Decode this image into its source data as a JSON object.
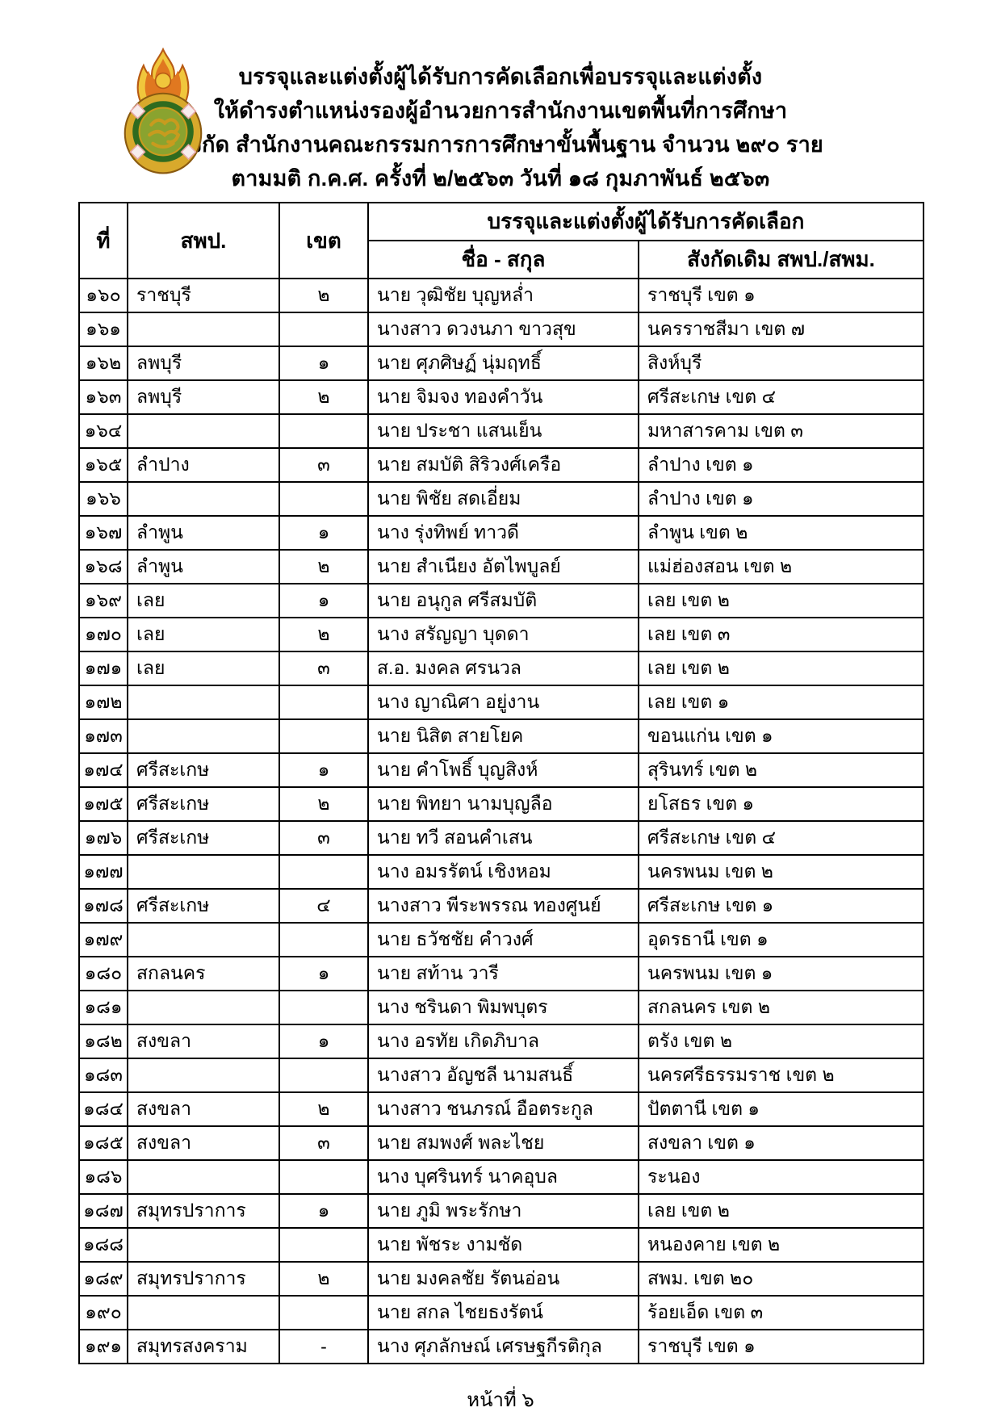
{
  "document": {
    "title_lines": [
      "บรรจุและแต่งตั้งผู้ได้รับการคัดเลือกเพื่อบรรจุและแต่งตั้ง",
      "ให้ดำรงตำแหน่งรองผู้อำนวยการสำนักงานเขตพื้นที่การศึกษา",
      "สังกัด สำนักงานคณะกรรมการการศึกษาขั้นพื้นฐาน จำนวน ๒๙๐ ราย",
      "ตามมติ ก.ค.ศ. ครั้งที่ ๒/๒๕๖๓ วันที่ ๑๘ กุมภาพันธ์ ๒๕๖๓"
    ]
  },
  "logo": {
    "name": "obec-ministry-of-education-seal",
    "colors": {
      "flame_outline": "#b85a14",
      "flame_fill": "#e07820",
      "flame_gold": "#f0c63c",
      "base_gold": "#d8a92c",
      "ring_dark_green": "#2f6b1f",
      "medallion_green": "#8aa32f",
      "script_gold": "#c89b1e",
      "accent_white": "#f7eded",
      "accent_pink": "#e8a9a9"
    }
  },
  "table": {
    "header": {
      "no": "ที่",
      "office": "สพป.",
      "zone": "เขต",
      "appointment_group": "บรรจุและแต่งตั้งผู้ได้รับการคัดเลือก",
      "name": "ชื่อ - สกุล",
      "former_affiliation": "สังกัดเดิม สพป./สพม."
    },
    "rows": [
      {
        "no": "๑๖๐",
        "office": "ราชบุรี",
        "zone": "๒",
        "name": "นาย วุฒิชัย บุญหล่ำ",
        "former": "ราชบุรี เขต ๑"
      },
      {
        "no": "๑๖๑",
        "office": "",
        "zone": "",
        "name": "นางสาว ดวงนภา ขาวสุข",
        "former": "นครราชสีมา เขต ๗"
      },
      {
        "no": "๑๖๒",
        "office": "ลพบุรี",
        "zone": "๑",
        "name": "นาย ศุภศิษฏ์ นุ่มฤทธิ์",
        "former": "สิงห์บุรี"
      },
      {
        "no": "๑๖๓",
        "office": "ลพบุรี",
        "zone": "๒",
        "name": "นาย จิมจง ทองคำวัน",
        "former": "ศรีสะเกษ เขต ๔"
      },
      {
        "no": "๑๖๔",
        "office": "",
        "zone": "",
        "name": "นาย ประชา แสนเย็น",
        "former": "มหาสารคาม เขต ๓"
      },
      {
        "no": "๑๖๕",
        "office": "ลำปาง",
        "zone": "๓",
        "name": "นาย สมบัติ สิริวงศ์เครือ",
        "former": "ลำปาง เขต ๑"
      },
      {
        "no": "๑๖๖",
        "office": "",
        "zone": "",
        "name": "นาย พิชัย สดเอี่ยม",
        "former": "ลำปาง เขต ๑"
      },
      {
        "no": "๑๖๗",
        "office": "ลำพูน",
        "zone": "๑",
        "name": "นาง รุ่งทิพย์ ทาวดี",
        "former": "ลำพูน เขต ๒"
      },
      {
        "no": "๑๖๘",
        "office": "ลำพูน",
        "zone": "๒",
        "name": "นาย สำเนียง อัตไพบูลย์",
        "former": "แม่ฮ่องสอน เขต ๒"
      },
      {
        "no": "๑๖๙",
        "office": "เลย",
        "zone": "๑",
        "name": "นาย อนุกูล ศรีสมบัติ",
        "former": "เลย เขต ๒"
      },
      {
        "no": "๑๗๐",
        "office": "เลย",
        "zone": "๒",
        "name": "นาง สรัญญา บุดดา",
        "former": "เลย เขต ๓"
      },
      {
        "no": "๑๗๑",
        "office": "เลย",
        "zone": "๓",
        "name": "ส.อ. มงคล ศรนวล",
        "former": "เลย เขต ๒"
      },
      {
        "no": "๑๗๒",
        "office": "",
        "zone": "",
        "name": "นาง ญาณิศา อยู่งาน",
        "former": "เลย เขต ๑"
      },
      {
        "no": "๑๗๓",
        "office": "",
        "zone": "",
        "name": "นาย นิสิต สายโยค",
        "former": "ขอนแก่น เขต ๑"
      },
      {
        "no": "๑๗๔",
        "office": "ศรีสะเกษ",
        "zone": "๑",
        "name": "นาย คำโพธิ์ บุญสิงห์",
        "former": "สุรินทร์ เขต ๒"
      },
      {
        "no": "๑๗๕",
        "office": "ศรีสะเกษ",
        "zone": "๒",
        "name": "นาย พิทยา นามบุญลือ",
        "former": "ยโสธร เขต ๑"
      },
      {
        "no": "๑๗๖",
        "office": "ศรีสะเกษ",
        "zone": "๓",
        "name": "นาย ทวี สอนคำเสน",
        "former": "ศรีสะเกษ เขต ๔"
      },
      {
        "no": "๑๗๗",
        "office": "",
        "zone": "",
        "name": "นาง อมรรัตน์ เชิงหอม",
        "former": "นครพนม เขต ๒"
      },
      {
        "no": "๑๗๘",
        "office": "ศรีสะเกษ",
        "zone": "๔",
        "name": "นางสาว พีระพรรณ ทองศูนย์",
        "former": "ศรีสะเกษ เขต ๑"
      },
      {
        "no": "๑๗๙",
        "office": "",
        "zone": "",
        "name": "นาย ธวัชชัย คำวงศ์",
        "former": "อุดรธานี เขต ๑"
      },
      {
        "no": "๑๘๐",
        "office": "สกลนคร",
        "zone": "๑",
        "name": "นาย สท้าน วารี",
        "former": "นครพนม เขต ๑"
      },
      {
        "no": "๑๘๑",
        "office": "",
        "zone": "",
        "name": "นาง ชรินดา พิมพบุตร",
        "former": "สกลนคร เขต ๒"
      },
      {
        "no": "๑๘๒",
        "office": "สงขลา",
        "zone": "๑",
        "name": "นาง อรทัย เกิดภิบาล",
        "former": "ตรัง เขต ๒"
      },
      {
        "no": "๑๘๓",
        "office": "",
        "zone": "",
        "name": "นางสาว อัญชลี นามสนธิ์",
        "former": "นครศรีธรรมราช เขต ๒"
      },
      {
        "no": "๑๘๔",
        "office": "สงขลา",
        "zone": "๒",
        "name": "นางสาว ชนภรณ์ อือตระกูล",
        "former": "ปัตตานี เขต ๑"
      },
      {
        "no": "๑๘๕",
        "office": "สงขลา",
        "zone": "๓",
        "name": "นาย สมพงศ์ พละไชย",
        "former": "สงขลา เขต ๑"
      },
      {
        "no": "๑๘๖",
        "office": "",
        "zone": "",
        "name": "นาง บุศรินทร์ นาคอุบล",
        "former": "ระนอง"
      },
      {
        "no": "๑๘๗",
        "office": "สมุทรปราการ",
        "zone": "๑",
        "name": "นาย ภูมิ พระรักษา",
        "former": "เลย เขต ๒"
      },
      {
        "no": "๑๘๘",
        "office": "",
        "zone": "",
        "name": "นาย พัชระ งามชัด",
        "former": "หนองคาย เขต ๒"
      },
      {
        "no": "๑๘๙",
        "office": "สมุทรปราการ",
        "zone": "๒",
        "name": "นาย มงคลชัย รัตนอ่อน",
        "former": "สพม. เขต ๒๐"
      },
      {
        "no": "๑๙๐",
        "office": "",
        "zone": "",
        "name": "นาย สกล ไชยธงรัตน์",
        "former": "ร้อยเอ็ด เขต ๓"
      },
      {
        "no": "๑๙๑",
        "office": "สมุทรสงคราม",
        "zone": "-",
        "name": "นาง ศุภลักษณ์ เศรษฐกีรติกุล",
        "former": "ราชบุรี เขต ๑"
      }
    ]
  },
  "footer": {
    "page_label": "หน้าที่ ๖"
  }
}
